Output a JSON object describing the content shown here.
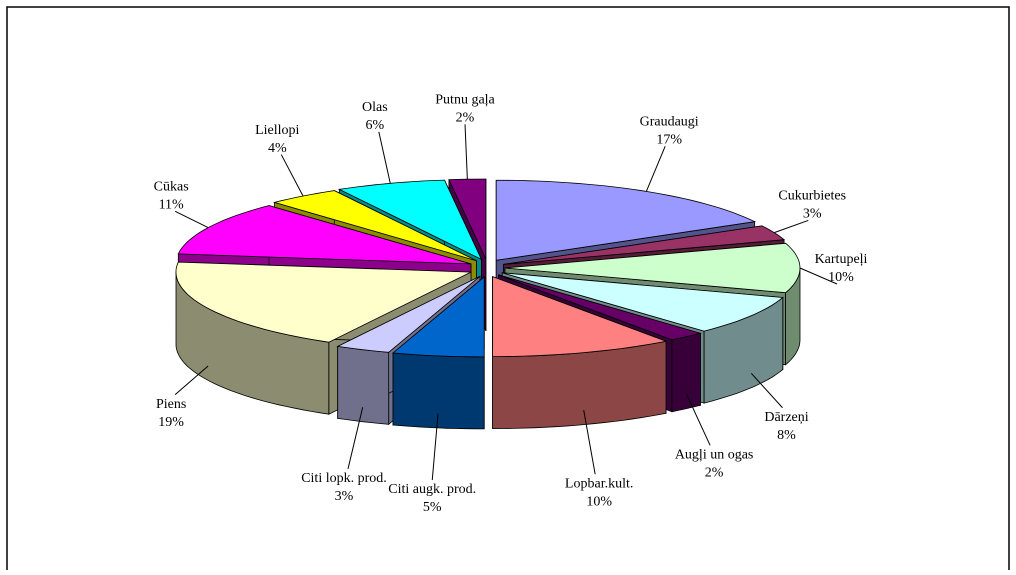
{
  "chart_data": {
    "type": "pie",
    "categories": [
      "Graudaugi",
      "Cukurbietes",
      "Kartupeļi",
      "Dārzeņi",
      "Augļi un ogas",
      "Lopbar.kult.",
      "Citi augk. prod.",
      "Citi lopk. prod.",
      "Piens",
      "Cūkas",
      "Liellopi",
      "Olas",
      "Putnu gaļa"
    ],
    "values": [
      17,
      3,
      10,
      8,
      2,
      10,
      5,
      3,
      19,
      11,
      4,
      6,
      2
    ],
    "value_labels": [
      "17%",
      "3%",
      "10%",
      "8%",
      "2%",
      "10%",
      "5%",
      "3%",
      "19%",
      "11%",
      "4%",
      "6%",
      "2%"
    ],
    "colors": [
      "#9999ff",
      "#993366",
      "#ccffcc",
      "#ccffff",
      "#660066",
      "#ff8080",
      "#0066cc",
      "#ccccff",
      "#ffffcc",
      "#ff00ff",
      "#ffff00",
      "#00ffff",
      "#800080"
    ]
  }
}
